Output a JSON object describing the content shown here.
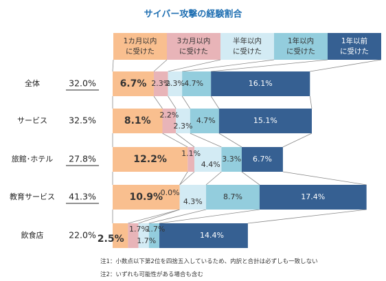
{
  "chart_data": {
    "type": "bar",
    "stacked": true,
    "orientation": "horizontal",
    "title": "サイバー攻撃の経験割合",
    "legend_position": "top",
    "categories": [
      "全体",
      "サービス",
      "旅館･ホテル",
      "教育サービス",
      "飲食店"
    ],
    "totals": [
      "32.0%",
      "32.5%",
      "27.8%",
      "41.3%",
      "22.0%"
    ],
    "totals_underlined": [
      true,
      false,
      true,
      true,
      false
    ],
    "series": [
      {
        "name": "1カ月以内\nに受けた",
        "color": "#f9bf8f",
        "values": [
          6.7,
          8.1,
          12.2,
          10.9,
          2.5
        ],
        "labels": [
          "6.7%",
          "8.1%",
          "12.2%",
          "10.9%",
          "2.5%"
        ]
      },
      {
        "name": "3カ月以内\nに受けた",
        "color": "#e8b4b8",
        "values": [
          2.3,
          2.2,
          1.1,
          0.0,
          1.7
        ],
        "labels": [
          "2.3%",
          "2.2%",
          "1.1%",
          "0.0%",
          "1.7%"
        ]
      },
      {
        "name": "半年以内\nに受けた",
        "color": "#d3ebf4",
        "values": [
          2.3,
          2.3,
          4.4,
          4.3,
          1.7
        ],
        "labels": [
          "2.3%",
          "2.3%",
          "4.4%",
          "4.3%",
          "1.7%"
        ]
      },
      {
        "name": "1年以内\nに受けた",
        "color": "#93cddd",
        "values": [
          4.7,
          4.7,
          3.3,
          8.7,
          1.7
        ],
        "labels": [
          "4.7%",
          "4.7%",
          "3.3%",
          "8.7%",
          "1.7%"
        ]
      },
      {
        "name": "1年以前\nに受けた",
        "color": "#366092",
        "values": [
          16.1,
          15.1,
          6.7,
          17.4,
          14.4
        ],
        "labels": [
          "16.1%",
          "15.1%",
          "6.7%",
          "17.4%",
          "14.4%"
        ]
      }
    ]
  },
  "notes": [
    "注1：小数点以下第2位を四捨五入しているため、内訳と合計は必ずしも一致しない",
    "注2：いずれも可能性がある場合も含む"
  ]
}
